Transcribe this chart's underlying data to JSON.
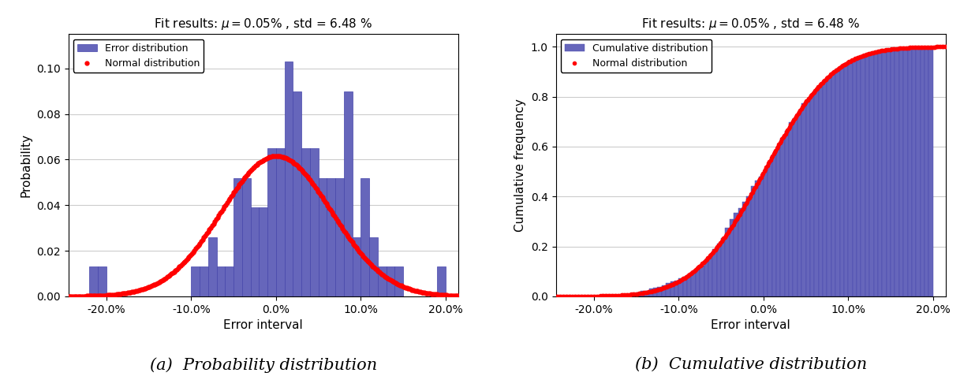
{
  "mu": 0.0005,
  "std": 0.0648,
  "title": "Fit results: $\\mu = 0.05\\%$ , std = 6.48 %",
  "xlabel": "Error interval",
  "ylabel_left": "Probability",
  "ylabel_right": "Cumulative frequency",
  "legend_left_1": "Normal distribution",
  "legend_left_2": "Error distribution",
  "legend_right_1": "Normal distribution",
  "legend_right_2": "Cumulative distribution",
  "caption_left": "(a)  Probability distribution",
  "caption_right": "(b)  Cumulative distribution",
  "bar_color": "#6666bb",
  "bar_edgecolor": "#4444aa",
  "dot_color": "#ff0000",
  "xlim": [
    -0.245,
    0.215
  ],
  "xticks": [
    -0.2,
    -0.1,
    0.0,
    0.1,
    0.2
  ],
  "xticklabels": [
    "-20.0%",
    "-10.0%",
    "0.0%",
    "10.0%",
    "20.0%"
  ],
  "background_color": "#ffffff",
  "grid_color": "#cccccc",
  "hist_bins_prob": 25,
  "hist_bins_cum": 80
}
